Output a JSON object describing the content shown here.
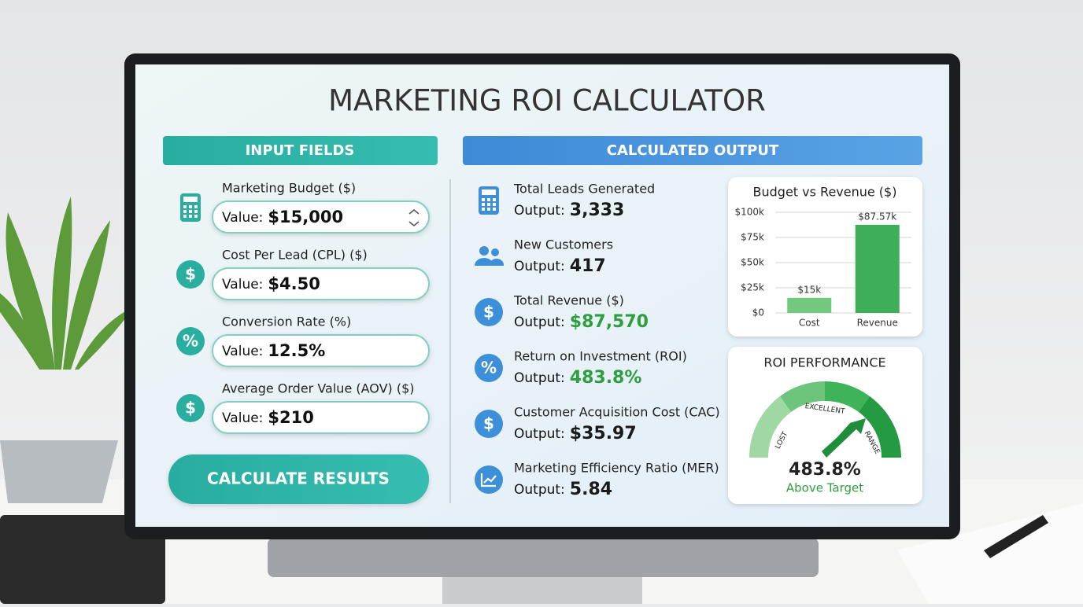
{
  "title": "MARKETING ROI CALCULATOR",
  "inputs": {
    "heading": "INPUT FIELDS",
    "fields": [
      {
        "label": "Marketing Budget ($)",
        "prefix": "Value:",
        "value": "$15,000"
      },
      {
        "label": "Cost Per Lead (CPL) ($)",
        "icon": "$",
        "prefix": "Value:",
        "value": "$4.50"
      },
      {
        "label": "Conversion Rate (%)",
        "icon": "%",
        "prefix": "Value:",
        "value": "12.5%"
      },
      {
        "label": "Average Order Value (AOV) ($)",
        "icon": "$",
        "prefix": "Value:",
        "value": "$210"
      }
    ]
  },
  "button": "CALCULATE RESULTS",
  "outputs": {
    "heading": "CALCULATED OUTPUT",
    "items": [
      {
        "label": "Total Leads Generated",
        "prefix": "Output:",
        "value": "3,333",
        "color": "#1a1a1a"
      },
      {
        "label": "New Customers",
        "prefix": "Output:",
        "value": "417",
        "color": "#1a1a1a"
      },
      {
        "label": "Total Revenue ($)",
        "icon": "$",
        "prefix": "Output:",
        "value": "$87,570",
        "color": "#2e9e3e"
      },
      {
        "label": "Return on Investment (ROI)",
        "icon": "%",
        "prefix": "Output:",
        "value": "483.8%",
        "color": "#2e9e3e"
      },
      {
        "label": "Customer Acquisition Cost (CAC)",
        "icon": "$",
        "prefix": "Output:",
        "value": "$35.97",
        "color": "#1a1a1a"
      },
      {
        "label": "Marketing Efficiency Ratio (MER)",
        "prefix": "Output:",
        "value": "5.84",
        "color": "#1a1a1a"
      }
    ]
  },
  "chart_data": {
    "type": "bar",
    "title": "Budget vs Revenue ($)",
    "categories": [
      "Cost",
      "Revenue"
    ],
    "values": [
      15000,
      87570
    ],
    "value_labels": [
      "$15k",
      "$87.57k"
    ],
    "colors": [
      "#72c87f",
      "#3fae58"
    ],
    "ylim": [
      0,
      100000
    ],
    "yticks": [
      {
        "value": 0,
        "label": "$0"
      },
      {
        "value": 25000,
        "label": "$25k"
      },
      {
        "value": 50000,
        "label": "$50k"
      },
      {
        "value": 75000,
        "label": "$75k"
      },
      {
        "value": 100000,
        "label": "$100k"
      }
    ],
    "grid": true
  },
  "gauge": {
    "title": "ROI PERFORMANCE",
    "ranges": [
      "LOST",
      "EXCELLENT",
      "RANGE"
    ],
    "value": "483.8%",
    "status": "Above Target"
  }
}
